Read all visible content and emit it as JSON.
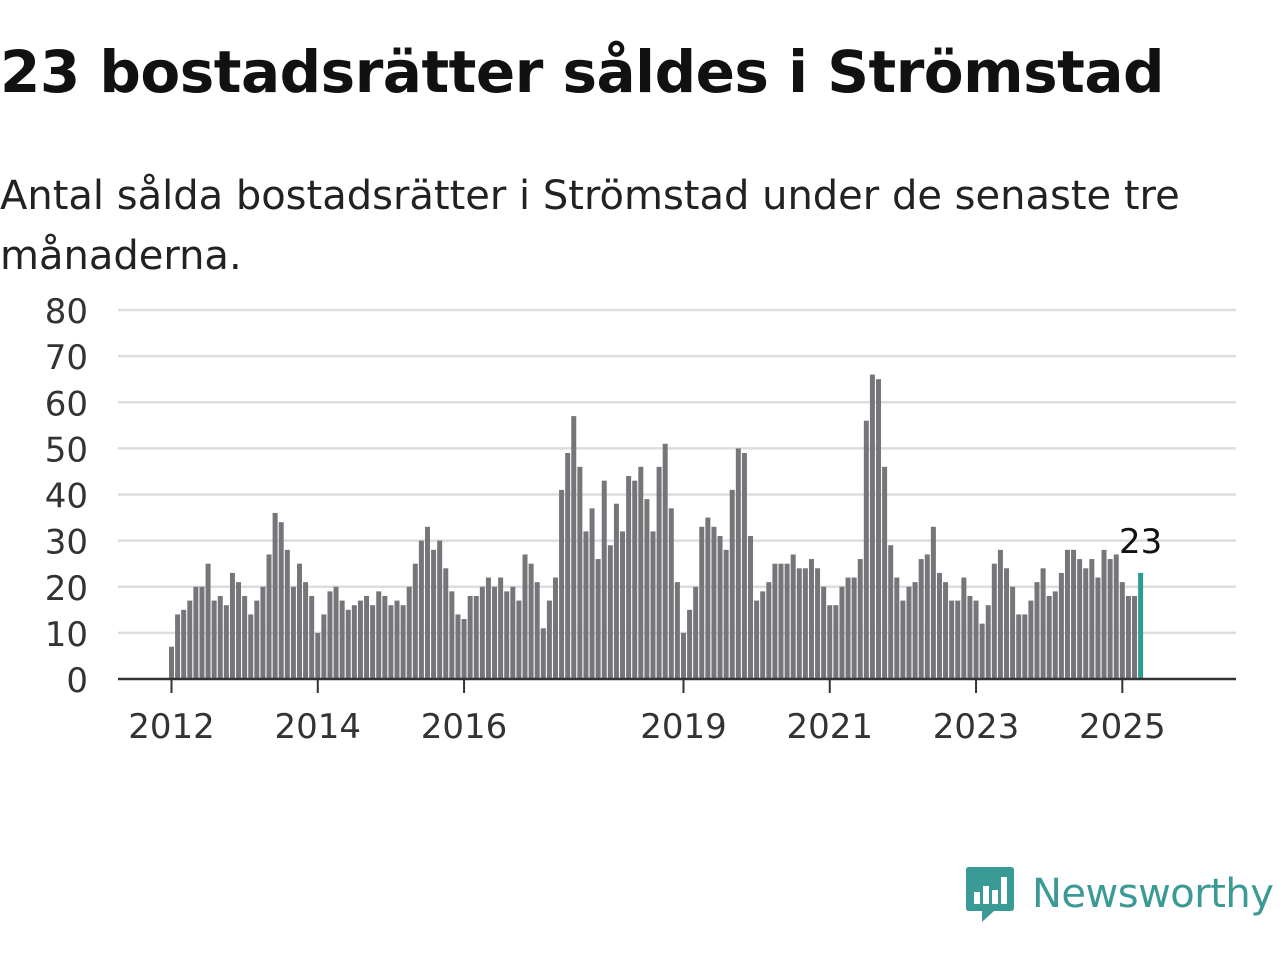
{
  "title": "23 bostadsrätter såldes i Strömstad",
  "subtitle": "Antal sålda bostadsrätter i Strömstad under de senaste tre månaderna.",
  "brand": {
    "name": "Newsworthy",
    "icon": "newsworthy-logo-icon"
  },
  "colors": {
    "bar": "#76757a",
    "highlight": "#2a9d8f",
    "grid": "#dddddd",
    "axis": "#333333",
    "brand": "#3a9a95"
  },
  "chart_data": {
    "type": "bar",
    "title": "23 bostadsrätter såldes i Strömstad",
    "subtitle": "Antal sålda bostadsrätter i Strömstad under de senaste tre månaderna.",
    "ylim": [
      0,
      80
    ],
    "yticks": [
      0,
      10,
      20,
      30,
      40,
      50,
      60,
      70,
      80
    ],
    "xticks": [
      "2012",
      "2014",
      "2016",
      "2019",
      "2021",
      "2023",
      "2025"
    ],
    "grid": true,
    "start": "2012-01",
    "period": "monthly",
    "values": [
      7,
      14,
      15,
      17,
      20,
      20,
      25,
      17,
      18,
      16,
      23,
      21,
      18,
      14,
      17,
      20,
      27,
      36,
      34,
      28,
      20,
      25,
      21,
      18,
      10,
      14,
      19,
      20,
      17,
      15,
      16,
      17,
      18,
      16,
      19,
      18,
      16,
      17,
      16,
      20,
      25,
      30,
      33,
      28,
      30,
      24,
      19,
      14,
      13,
      18,
      18,
      20,
      22,
      20,
      22,
      19,
      20,
      17,
      27,
      25,
      21,
      11,
      17,
      22,
      41,
      49,
      57,
      46,
      32,
      37,
      26,
      43,
      29,
      38,
      32,
      44,
      43,
      46,
      39,
      32,
      46,
      51,
      37,
      21,
      10,
      15,
      20,
      33,
      35,
      33,
      31,
      28,
      41,
      50,
      49,
      31,
      17,
      19,
      21,
      25,
      25,
      25,
      27,
      24,
      24,
      26,
      24,
      20,
      16,
      16,
      20,
      22,
      22,
      26,
      56,
      66,
      65,
      46,
      29,
      22,
      17,
      20,
      21,
      26,
      27,
      33,
      23,
      21,
      17,
      17,
      22,
      18,
      17,
      12,
      16,
      25,
      28,
      24,
      20,
      14,
      14,
      17,
      21,
      24,
      18,
      19,
      23,
      28,
      28,
      26,
      24,
      26,
      22,
      28,
      26,
      27,
      21,
      18,
      18,
      23
    ],
    "highlight_label": "23"
  }
}
